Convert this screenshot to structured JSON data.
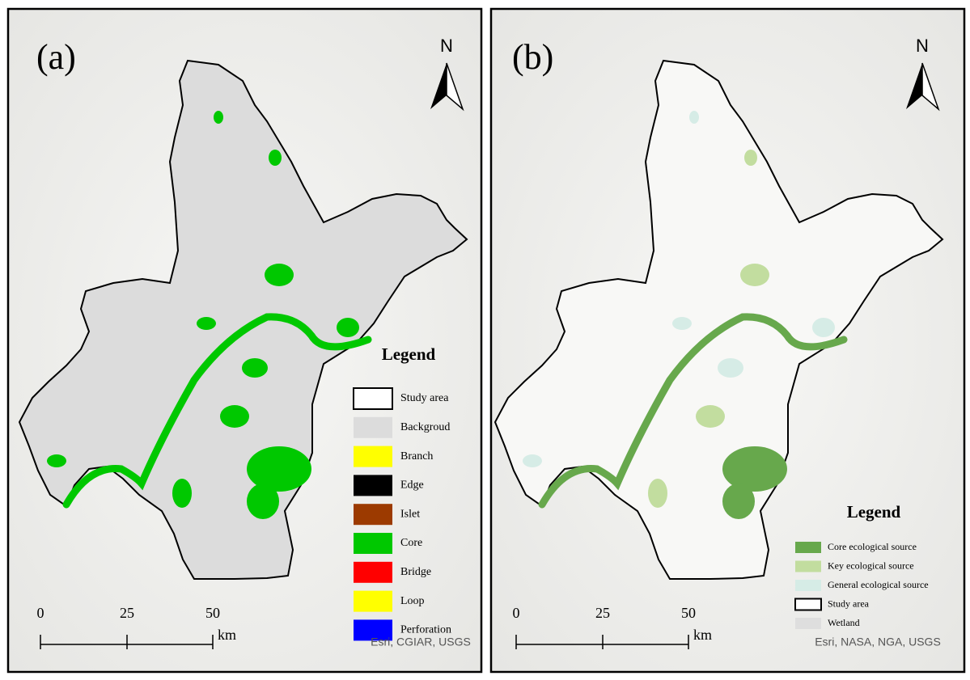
{
  "panels": [
    {
      "label": "(a)",
      "north": "N",
      "legend_title": "Legend",
      "legend": [
        {
          "label": "Study area",
          "color": "#ffffff",
          "border": "#000000"
        },
        {
          "label": "Backgroud",
          "color": "#dcdcdc"
        },
        {
          "label": "Branch",
          "color": "#ffff00"
        },
        {
          "label": "Edge",
          "color": "#000000"
        },
        {
          "label": "Islet",
          "color": "#9c3a00"
        },
        {
          "label": "Core",
          "color": "#00c800"
        },
        {
          "label": "Bridge",
          "color": "#ff0000"
        },
        {
          "label": "Loop",
          "color": "#ffff00"
        },
        {
          "label": "Perforation",
          "color": "#0000ff"
        }
      ],
      "scale_labels": [
        "0",
        "25",
        "50"
      ],
      "scale_unit": "km",
      "attribution": "Esri, CGIAR, USGS"
    },
    {
      "label": "(b)",
      "north": "N",
      "legend_title": "Legend",
      "legend": [
        {
          "label": "Core ecological source",
          "color": "#67a84c"
        },
        {
          "label": "Key ecological source",
          "color": "#c2dd9f"
        },
        {
          "label": "General ecological source",
          "color": "#d6ece6"
        },
        {
          "label": "Study area",
          "color": "#ffffff",
          "border": "#000000"
        },
        {
          "label": "Wetland",
          "color": "#dedede"
        }
      ],
      "scale_labels": [
        "0",
        "25",
        "50"
      ],
      "scale_unit": "km",
      "attribution": "Esri, NASA, NGA, USGS"
    }
  ]
}
